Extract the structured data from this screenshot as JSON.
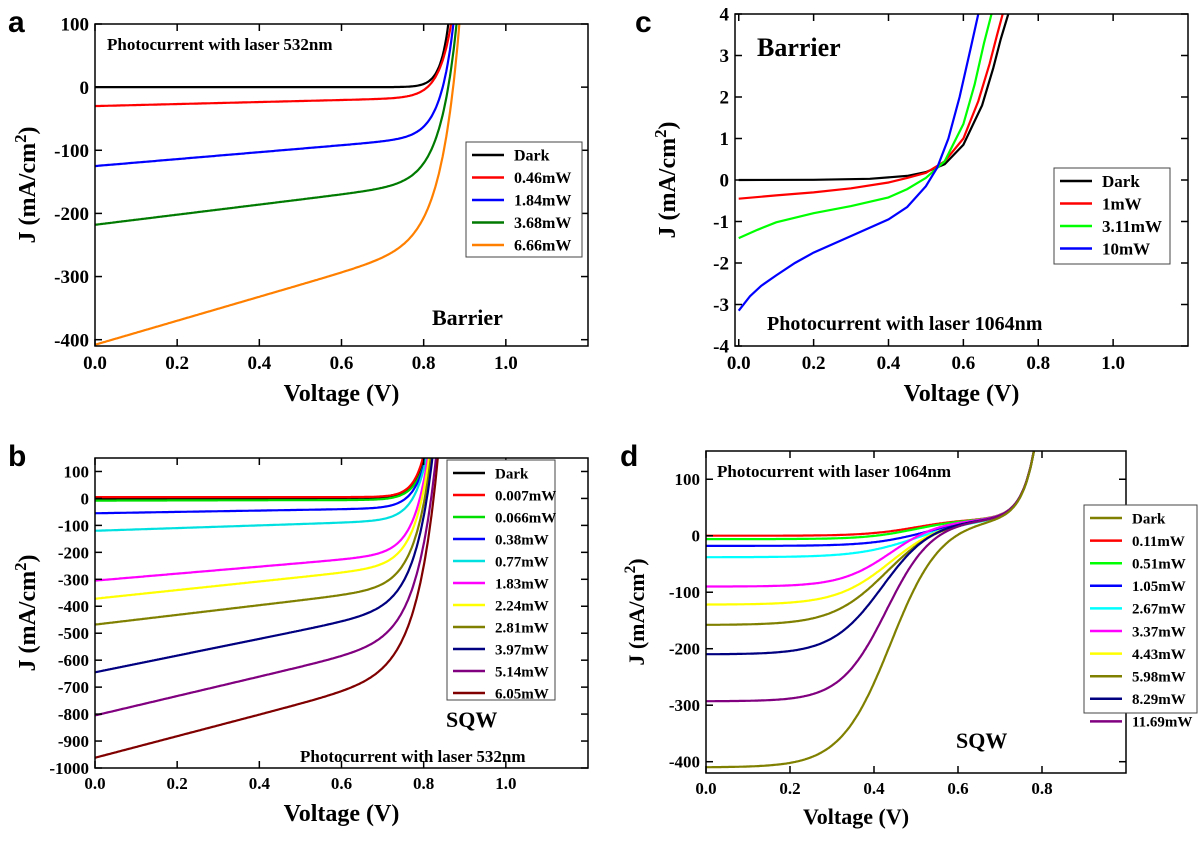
{
  "chart_data": [
    {
      "id": "a",
      "type": "line",
      "panel_label": "a",
      "xlabel": "Voltage (V)",
      "ylabel": "J (mA/cm",
      "ylabel_sup": "2",
      "ylabel_close": ")",
      "xlim": [
        0,
        1.2
      ],
      "ylim": [
        -410,
        100
      ],
      "xticks": [
        0.0,
        0.2,
        0.4,
        0.6,
        0.8,
        1.0
      ],
      "xtick_labels": [
        "0.0",
        "0.2",
        "0.4",
        "0.6",
        "0.8",
        "1.0"
      ],
      "yticks": [
        100,
        0,
        -100,
        -200,
        -300,
        -400
      ],
      "ytick_labels": [
        "100",
        "0",
        "-100",
        "-200",
        "-300",
        "-400"
      ],
      "annotations": [
        {
          "text": "Photocurrent with laser 532nm",
          "position": "top-left"
        },
        {
          "text": "Barrier",
          "position": "bottom-right"
        }
      ],
      "legend": "middle-right",
      "series": [
        {
          "name": "Dark",
          "color": "#000000",
          "isc": 0,
          "voc": 0.86,
          "slope": 0,
          "n": 0.02
        },
        {
          "name": "0.46mW",
          "color": "#ff0000",
          "isc": -30,
          "voc": 0.87,
          "slope": 16,
          "n": 0.03
        },
        {
          "name": "1.84mW",
          "color": "#0000ff",
          "isc": -125,
          "voc": 0.88,
          "slope": 55,
          "n": 0.032
        },
        {
          "name": "3.68mW",
          "color": "#007a00",
          "isc": -218,
          "voc": 0.89,
          "slope": 80,
          "n": 0.04
        },
        {
          "name": "6.66mW",
          "color": "#ff8000",
          "isc": -408,
          "voc": 0.905,
          "slope": 190,
          "n": 0.045
        }
      ]
    },
    {
      "id": "b",
      "type": "line",
      "panel_label": "b",
      "xlabel": "Voltage (V)",
      "ylabel": "J (mA/cm",
      "ylabel_sup": "2",
      "ylabel_close": ")",
      "xlim": [
        0,
        1.2
      ],
      "ylim": [
        -1000,
        150
      ],
      "xticks": [
        0.0,
        0.2,
        0.4,
        0.6,
        0.8,
        1.0
      ],
      "xtick_labels": [
        "0.0",
        "0.2",
        "0.4",
        "0.6",
        "0.8",
        "1.0"
      ],
      "yticks": [
        100,
        0,
        -100,
        -200,
        -300,
        -400,
        -500,
        -600,
        -700,
        -800,
        -900,
        -1000
      ],
      "ytick_labels": [
        "100",
        "0",
        "-100",
        "-200",
        "-300",
        "-400",
        "-500",
        "-600",
        "-700",
        "-800",
        "-900",
        "-1000"
      ],
      "annotations": [
        {
          "text": "SQW",
          "position": "bottom-right"
        },
        {
          "text": "Photocurrent with laser 532nm",
          "position": "bottom-right"
        }
      ],
      "legend": "right",
      "series": [
        {
          "name": "Dark",
          "color": "#000000",
          "isc": 0,
          "voc": 0.79,
          "slope": 0,
          "n": 0.025
        },
        {
          "name": "0.007mW",
          "color": "#ff0000",
          "isc": 5,
          "voc": 0.79,
          "slope": 0,
          "n": 0.025
        },
        {
          "name": "0.066mW",
          "color": "#00dd00",
          "isc": -8,
          "voc": 0.795,
          "slope": 3,
          "n": 0.028
        },
        {
          "name": "0.38mW",
          "color": "#0000ff",
          "isc": -55,
          "voc": 0.8,
          "slope": 25,
          "n": 0.03
        },
        {
          "name": "0.77mW",
          "color": "#00e0e0",
          "isc": -120,
          "voc": 0.805,
          "slope": 50,
          "n": 0.032
        },
        {
          "name": "1.83mW",
          "color": "#ff00ff",
          "isc": -305,
          "voc": 0.815,
          "slope": 130,
          "n": 0.035
        },
        {
          "name": "2.24mW",
          "color": "#ffff00",
          "isc": -372,
          "voc": 0.82,
          "slope": 160,
          "n": 0.037
        },
        {
          "name": "2.81mW",
          "color": "#808000",
          "isc": -468,
          "voc": 0.825,
          "slope": 180,
          "n": 0.04
        },
        {
          "name": "3.97mW",
          "color": "#000080",
          "isc": -645,
          "voc": 0.835,
          "slope": 310,
          "n": 0.043
        },
        {
          "name": "5.14mW",
          "color": "#800080",
          "isc": -805,
          "voc": 0.845,
          "slope": 360,
          "n": 0.047
        },
        {
          "name": "6.05mW",
          "color": "#800000",
          "isc": -962,
          "voc": 0.85,
          "slope": 400,
          "n": 0.05
        }
      ]
    },
    {
      "id": "c",
      "type": "line",
      "panel_label": "c",
      "xlabel": "Voltage (V)",
      "ylabel": "J (mA/cm",
      "ylabel_sup": "2",
      "ylabel_close": ")",
      "xlim": [
        -0.01,
        1.2
      ],
      "ylim": [
        -4,
        4
      ],
      "xticks": [
        0.0,
        0.2,
        0.4,
        0.6,
        0.8,
        1.0
      ],
      "xtick_labels": [
        "0.0",
        "0.2",
        "0.4",
        "0.6",
        "0.8",
        "1.0"
      ],
      "yticks": [
        4,
        3,
        2,
        1,
        0,
        -1,
        -2,
        -3,
        -4
      ],
      "ytick_labels": [
        "4",
        "3",
        "2",
        "1",
        "0",
        "-1",
        "-2",
        "-3",
        "-4"
      ],
      "annotations": [
        {
          "text": "Barrier",
          "position": "top-left"
        },
        {
          "text": "Photocurrent with laser 1064nm",
          "position": "bottom"
        }
      ],
      "legend": "middle-right",
      "series": [
        {
          "name": "Dark",
          "color": "#000000",
          "points": [
            [
              0,
              0
            ],
            [
              0.2,
              0.005
            ],
            [
              0.35,
              0.03
            ],
            [
              0.45,
              0.1
            ],
            [
              0.5,
              0.19
            ],
            [
              0.55,
              0.38
            ],
            [
              0.6,
              0.85
            ],
            [
              0.65,
              1.8
            ],
            [
              0.68,
              2.7
            ],
            [
              0.7,
              3.4
            ],
            [
              0.72,
              4.0
            ]
          ]
        },
        {
          "name": "1mW",
          "color": "#ff0000",
          "points": [
            [
              0,
              -0.45
            ],
            [
              0.1,
              -0.37
            ],
            [
              0.2,
              -0.3
            ],
            [
              0.3,
              -0.2
            ],
            [
              0.4,
              -0.06
            ],
            [
              0.45,
              0.05
            ],
            [
              0.5,
              0.17
            ],
            [
              0.55,
              0.45
            ],
            [
              0.6,
              1.0
            ],
            [
              0.64,
              1.9
            ],
            [
              0.67,
              2.8
            ],
            [
              0.69,
              3.5
            ],
            [
              0.705,
              4.0
            ]
          ]
        },
        {
          "name": "3.11mW",
          "color": "#00ff00",
          "points": [
            [
              0,
              -1.4
            ],
            [
              0.05,
              -1.2
            ],
            [
              0.1,
              -1.02
            ],
            [
              0.2,
              -0.8
            ],
            [
              0.3,
              -0.63
            ],
            [
              0.4,
              -0.42
            ],
            [
              0.45,
              -0.22
            ],
            [
              0.5,
              0.05
            ],
            [
              0.55,
              0.45
            ],
            [
              0.6,
              1.35
            ],
            [
              0.63,
              2.3
            ],
            [
              0.655,
              3.3
            ],
            [
              0.675,
              4.0
            ]
          ]
        },
        {
          "name": "10mW",
          "color": "#0000ff",
          "points": [
            [
              0,
              -3.15
            ],
            [
              0.03,
              -2.8
            ],
            [
              0.06,
              -2.55
            ],
            [
              0.1,
              -2.3
            ],
            [
              0.15,
              -2.0
            ],
            [
              0.2,
              -1.75
            ],
            [
              0.3,
              -1.35
            ],
            [
              0.4,
              -0.95
            ],
            [
              0.45,
              -0.65
            ],
            [
              0.5,
              -0.15
            ],
            [
              0.53,
              0.3
            ],
            [
              0.56,
              1.0
            ],
            [
              0.59,
              2.0
            ],
            [
              0.62,
              3.2
            ],
            [
              0.64,
              4.0
            ]
          ]
        }
      ]
    },
    {
      "id": "d",
      "type": "line",
      "panel_label": "d",
      "xlabel": "Voltage (V)",
      "ylabel": "J (mA/cm",
      "ylabel_sup": "2",
      "ylabel_close": ")",
      "xlim": [
        0,
        1.0
      ],
      "ylim": [
        -420,
        150
      ],
      "xticks": [
        0.0,
        0.2,
        0.4,
        0.6,
        0.8
      ],
      "xtick_labels": [
        "0.0",
        "0.2",
        "0.4",
        "0.6",
        "0.8"
      ],
      "yticks": [
        100,
        0,
        -100,
        -200,
        -300,
        -400
      ],
      "ytick_labels": [
        "100",
        "0",
        "-100",
        "-200",
        "-300",
        "-400"
      ],
      "annotations": [
        {
          "text": "Photocurrent with laser 1064nm",
          "position": "top-left"
        },
        {
          "text": "SQW",
          "position": "bottom-right"
        }
      ],
      "legend": "right",
      "series": [
        {
          "name": "Dark",
          "color": "#808000",
          "show_curve": false
        },
        {
          "name": "0.11mW",
          "color": "#ff0000",
          "isc": 0,
          "mid": 0.5,
          "w": 0.06
        },
        {
          "name": "0.51mW",
          "color": "#00ff00",
          "isc": -6,
          "mid": 0.5,
          "w": 0.06
        },
        {
          "name": "1.05mW",
          "color": "#0000ff",
          "isc": -18,
          "mid": 0.52,
          "w": 0.065
        },
        {
          "name": "2.67mW",
          "color": "#00ffff",
          "isc": -38,
          "mid": 0.5,
          "w": 0.07
        },
        {
          "name": "3.37mW",
          "color": "#ff00ff",
          "isc": -90,
          "mid": 0.44,
          "w": 0.06
        },
        {
          "name": "4.43mW",
          "color": "#ffff00",
          "isc": -122,
          "mid": 0.44,
          "w": 0.065
        },
        {
          "name": "5.98mW",
          "color": "#808000",
          "isc": -158,
          "mid": 0.43,
          "w": 0.065
        },
        {
          "name": "8.29mW",
          "color": "#000080",
          "isc": -210,
          "mid": 0.42,
          "w": 0.06
        },
        {
          "name": "11.69mW",
          "color": "#800080",
          "isc": -293,
          "mid": 0.43,
          "w": 0.055
        },
        {
          "name": "",
          "color": "#808000",
          "isc": -410,
          "mid": 0.44,
          "w": 0.06,
          "in_legend": false
        }
      ]
    }
  ]
}
